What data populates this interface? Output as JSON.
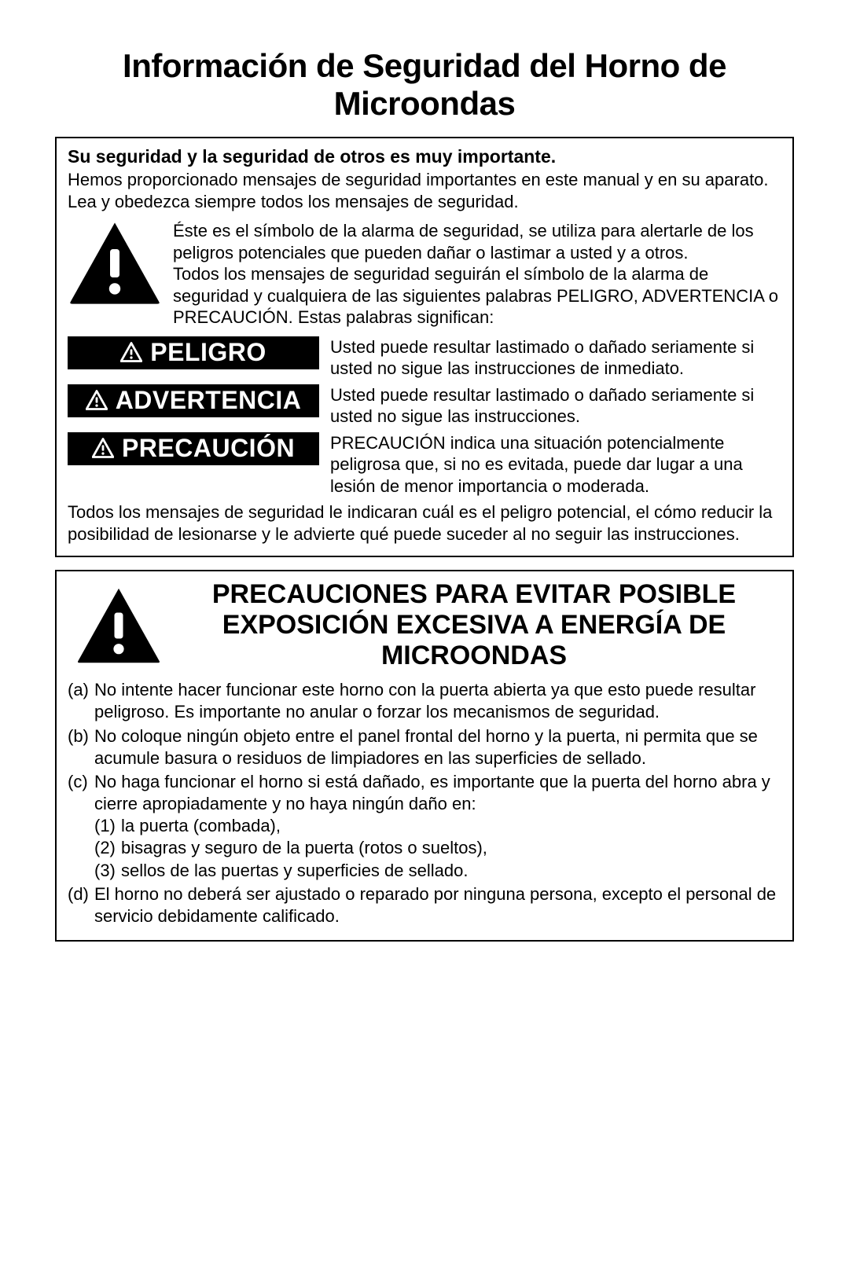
{
  "title": "Información de Seguridad del Horno de Microondas",
  "box1": {
    "lead_bold": "Su seguridad y la seguridad de otros es muy importante.",
    "lead_body": "Hemos proporcionado mensajes de seguridad importantes en este manual y en su aparato. Lea y obedezca siempre todos los mensajes de seguridad.",
    "symbol_text1": "Éste es el símbolo de la alarma de seguridad, se utiliza para alertarle de los peligros potenciales que pueden dañar o lastimar a usted  y a otros.",
    "symbol_text2": "Todos los mensajes de seguridad seguirán el símbolo de la alarma de seguridad y cualquiera de las siguientes palabras PELIGRO, ADVERTENCIA o PRECAUCIÓN. Estas palabras significan:",
    "warnings": [
      {
        "label": "PELIGRO",
        "desc": "Usted puede resultar lastimado o dañado seriamente si usted no sigue las instrucciones de inmediato."
      },
      {
        "label": "ADVERTENCIA",
        "desc": "Usted puede resultar lastimado o dañado seriamente si usted no sigue las instrucciones."
      },
      {
        "label": "PRECAUCIÓN",
        "desc": "PRECAUCIÓN indica una situación potencialmente peligrosa que, si no es evitada, puede dar lugar a una lesión de menor importancia o moderada."
      }
    ],
    "footer": "Todos los mensajes de seguridad le indicaran cuál es el peligro potencial, el cómo reducir la posibilidad de lesionarse y le advierte qué puede suceder al no seguir las instrucciones."
  },
  "box2": {
    "title": "PRECAUCIONES PARA EVITAR POSIBLE EXPOSICIÓN EXCESIVA A ENERGÍA DE MICROONDAS",
    "items": [
      {
        "lbl": "(a)",
        "txt": "No intente hacer funcionar este horno con la puerta abierta ya que esto puede resultar peligroso. Es importante no anular o forzar los mecanismos de seguridad."
      },
      {
        "lbl": "(b)",
        "txt": "No coloque ningún objeto entre el panel frontal del horno y la puerta, ni permita que se acumule basura o residuos de limpiadores en las superficies de sellado."
      },
      {
        "lbl": "(c)",
        "txt": "No haga funcionar el horno si está dañado, es importante que la puerta del horno abra y cierre apropiadamente y no haya ningún daño en:",
        "subs": [
          {
            "slbl": "(1)",
            "stxt": "la puerta (combada),"
          },
          {
            "slbl": "(2)",
            "stxt": "bisagras y seguro de la puerta (rotos o sueltos),"
          },
          {
            "slbl": "(3)",
            "stxt": "sellos de las puertas y superficies de sellado."
          }
        ]
      },
      {
        "lbl": "(d)",
        "txt": "El horno no deberá ser ajustado o reparado por ninguna persona, excepto el personal de servicio debidamente calificado."
      }
    ]
  }
}
